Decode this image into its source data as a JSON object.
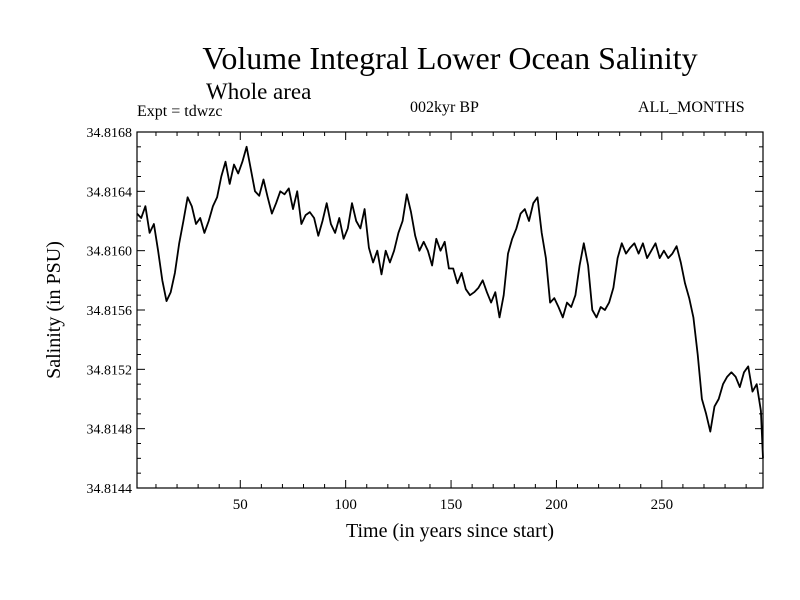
{
  "header": {
    "title": "Volume Integral Lower Ocean Salinity",
    "subtitle": "Whole area",
    "expt": "Expt = tdwzc",
    "period": "002kyr BP",
    "months": "ALL_MONTHS"
  },
  "chart_data": {
    "type": "line",
    "xlabel": "Time (in years since start)",
    "ylabel": "Salinity (in PSU)",
    "xlim": [
      1,
      298
    ],
    "ylim": [
      34.8144,
      34.8168
    ],
    "xticks": [
      50,
      100,
      150,
      200,
      250
    ],
    "yticks": [
      34.8144,
      34.8148,
      34.8152,
      34.8156,
      34.816,
      34.8164,
      34.8168
    ],
    "ytick_labels": [
      "34.8144",
      "34.8148",
      "34.8152",
      "34.8156",
      "34.8160",
      "34.8164",
      "34.8168"
    ],
    "grid": false,
    "series": [
      {
        "color": "#000000",
        "x": [
          1,
          3,
          5,
          7,
          9,
          11,
          13,
          15,
          17,
          19,
          21,
          23,
          25,
          27,
          29,
          31,
          33,
          35,
          37,
          39,
          41,
          43,
          45,
          47,
          49,
          51,
          53,
          55,
          57,
          59,
          61,
          63,
          65,
          67,
          69,
          71,
          73,
          75,
          77,
          79,
          81,
          83,
          85,
          87,
          89,
          91,
          93,
          95,
          97,
          99,
          101,
          103,
          105,
          107,
          109,
          111,
          113,
          115,
          117,
          119,
          121,
          123,
          125,
          127,
          129,
          131,
          133,
          135,
          137,
          139,
          141,
          143,
          145,
          147,
          149,
          151,
          153,
          155,
          157,
          159,
          161,
          163,
          165,
          167,
          169,
          171,
          173,
          175,
          177,
          179,
          181,
          183,
          185,
          187,
          189,
          191,
          193,
          195,
          197,
          199,
          201,
          203,
          205,
          207,
          209,
          211,
          213,
          215,
          217,
          219,
          221,
          223,
          225,
          227,
          229,
          231,
          233,
          235,
          237,
          239,
          241,
          243,
          245,
          247,
          249,
          251,
          253,
          255,
          257,
          259,
          261,
          263,
          265,
          267,
          269,
          271,
          273,
          275,
          277,
          279,
          281,
          283,
          285,
          287,
          289,
          291,
          293,
          295,
          297,
          298
        ],
        "values": [
          34.81625,
          34.81622,
          34.8163,
          34.81612,
          34.81618,
          34.816,
          34.8158,
          34.81566,
          34.81572,
          34.81585,
          34.81605,
          34.8162,
          34.81636,
          34.8163,
          34.81618,
          34.81622,
          34.81612,
          34.8162,
          34.8163,
          34.81636,
          34.8165,
          34.8166,
          34.81645,
          34.81658,
          34.81652,
          34.8166,
          34.8167,
          34.81655,
          34.8164,
          34.81637,
          34.81648,
          34.81636,
          34.81625,
          34.81632,
          34.8164,
          34.81638,
          34.81642,
          34.81628,
          34.8164,
          34.81618,
          34.81624,
          34.81626,
          34.81622,
          34.8161,
          34.8162,
          34.81632,
          34.81618,
          34.81612,
          34.81622,
          34.81608,
          34.81615,
          34.81632,
          34.8162,
          34.81615,
          34.81628,
          34.81602,
          34.81592,
          34.816,
          34.81584,
          34.816,
          34.81592,
          34.816,
          34.81612,
          34.8162,
          34.81638,
          34.81626,
          34.8161,
          34.816,
          34.81606,
          34.816,
          34.8159,
          34.81608,
          34.816,
          34.81606,
          34.81588,
          34.81588,
          34.81578,
          34.81585,
          34.81574,
          34.8157,
          34.81572,
          34.81575,
          34.8158,
          34.81572,
          34.81565,
          34.81572,
          34.81555,
          34.8157,
          34.81598,
          34.81608,
          34.81615,
          34.81625,
          34.81628,
          34.8162,
          34.81632,
          34.81636,
          34.81612,
          34.81595,
          34.81565,
          34.81568,
          34.81562,
          34.81555,
          34.81565,
          34.81562,
          34.8157,
          34.8159,
          34.81605,
          34.8159,
          34.8156,
          34.81555,
          34.81562,
          34.8156,
          34.81565,
          34.81575,
          34.81595,
          34.81605,
          34.81598,
          34.81602,
          34.81605,
          34.81598,
          34.81605,
          34.81595,
          34.816,
          34.81605,
          34.81595,
          34.816,
          34.81595,
          34.81598,
          34.81603,
          34.81592,
          34.81578,
          34.81568,
          34.81555,
          34.8153,
          34.815,
          34.8149,
          34.81478,
          34.81495,
          34.815,
          34.8151,
          34.81515,
          34.81518,
          34.81515,
          34.81508,
          34.81518,
          34.81522,
          34.81505,
          34.8151,
          34.81492,
          34.8146
        ]
      }
    ]
  }
}
